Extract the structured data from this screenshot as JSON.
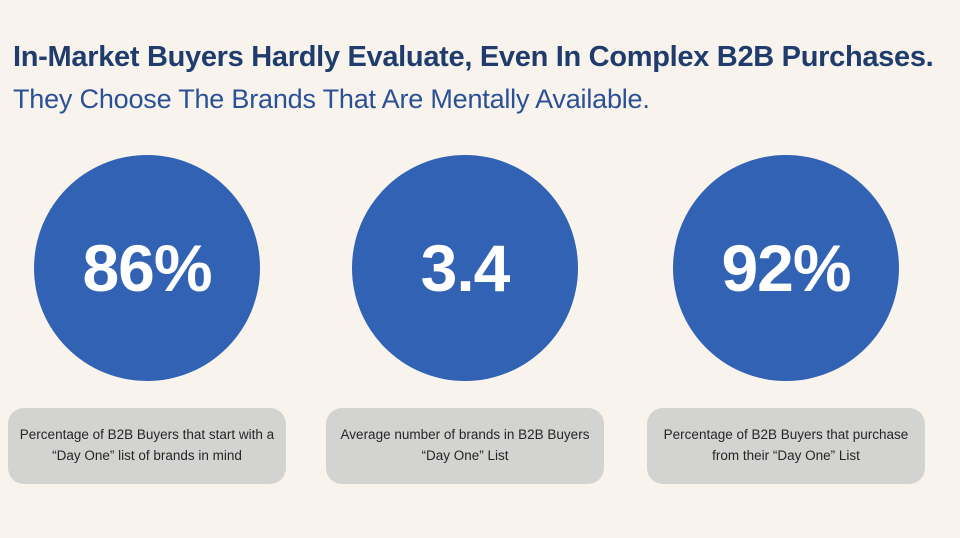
{
  "page": {
    "background_color": "#F8F4ED"
  },
  "header": {
    "title": "In-Market Buyers Hardly Evaluate, Even In Complex B2B Purchases.",
    "subtitle": "They Choose The Brands That Are Mentally Available.",
    "title_color": "#1F3C6D",
    "subtitle_color": "#2A5096"
  },
  "stats": [
    {
      "value": "86%",
      "caption": "Percentage of B2B Buyers that start with a “Day One” list of brands in mind"
    },
    {
      "value": "3.4",
      "caption": "Average number of brands in B2B Buyers “Day One” List"
    },
    {
      "value": "92%",
      "caption": "Percentage of B2B Buyers that purchase from their “Day One” List"
    }
  ],
  "colors": {
    "circle_fill": "#3162B4",
    "circle_text": "#FFFFFF",
    "caption_background": "#D3D3D2",
    "caption_text": "#262626"
  }
}
